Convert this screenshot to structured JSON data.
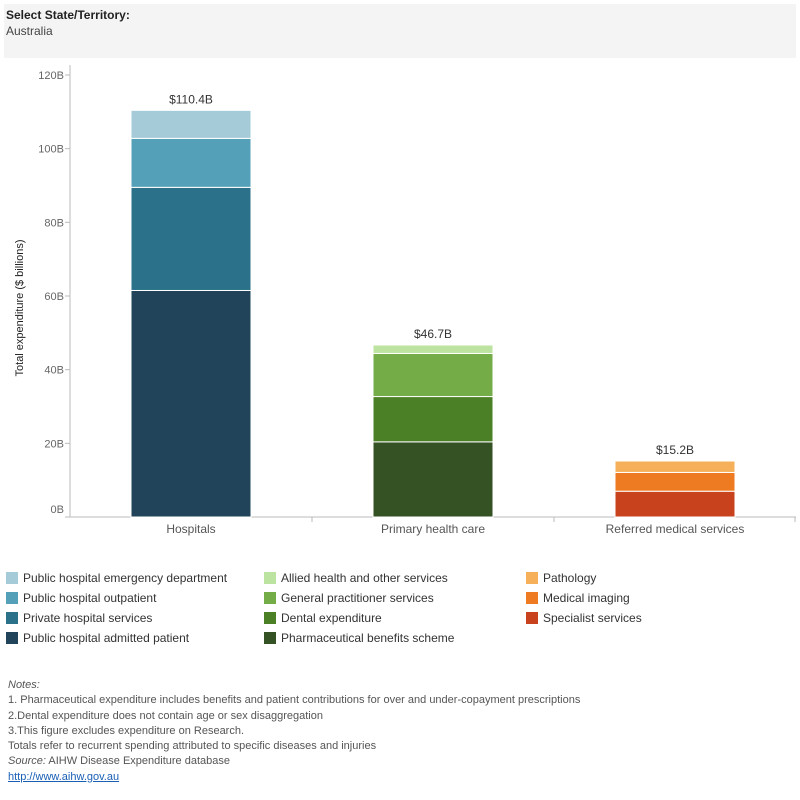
{
  "filter": {
    "label": "Select State/Territory:",
    "value": "Australia"
  },
  "chart_data": {
    "type": "bar",
    "stacked": true,
    "ylabel": "Total expenditure ($ billions)",
    "ylim": [
      0,
      120
    ],
    "yticks": [
      "0B",
      "20B",
      "40B",
      "60B",
      "80B",
      "100B",
      "120B"
    ],
    "gridlines": false,
    "categories": [
      "Hospitals",
      "Primary health care",
      "Referred medical services"
    ],
    "totals": [
      {
        "category": "Hospitals",
        "value": 110.4,
        "label": "$110.4B"
      },
      {
        "category": "Primary health care",
        "value": 46.7,
        "label": "$46.7B"
      },
      {
        "category": "Referred medical services",
        "value": 15.2,
        "label": "$15.2B"
      }
    ],
    "series": [
      {
        "name": "Public hospital admitted patient",
        "category": "Hospitals",
        "value": 61.5,
        "color": "#22445a"
      },
      {
        "name": "Private hospital services",
        "category": "Hospitals",
        "value": 28.0,
        "color": "#2a7189"
      },
      {
        "name": "Public hospital outpatient",
        "category": "Hospitals",
        "value": 13.3,
        "color": "#55a0b9"
      },
      {
        "name": "Public hospital emergency department",
        "category": "Hospitals",
        "value": 7.6,
        "color": "#a6cbd8"
      },
      {
        "name": "Pharmaceutical benefits scheme",
        "category": "Primary health care",
        "value": 20.4,
        "color": "#355224"
      },
      {
        "name": "Dental expenditure",
        "category": "Primary health care",
        "value": 12.3,
        "color": "#4b8027"
      },
      {
        "name": "General practitioner services",
        "category": "Primary health care",
        "value": 11.7,
        "color": "#74ad48"
      },
      {
        "name": "Allied health and other services",
        "category": "Primary health care",
        "value": 2.3,
        "color": "#bde3a1"
      },
      {
        "name": "Specialist services",
        "category": "Referred medical services",
        "value": 7.0,
        "color": "#c8431d"
      },
      {
        "name": "Medical imaging",
        "category": "Referred medical services",
        "value": 5.1,
        "color": "#ee7a22"
      },
      {
        "name": "Pathology",
        "category": "Referred medical services",
        "value": 3.1,
        "color": "#f5b059"
      }
    ],
    "legend": {
      "placement": "bottom",
      "columns": [
        [
          "Public hospital emergency department",
          "Public hospital outpatient",
          "Private hospital services",
          "Public hospital admitted patient"
        ],
        [
          "Allied health and other services",
          "General practitioner services",
          "Dental expenditure",
          "Pharmaceutical benefits scheme"
        ],
        [
          "Pathology",
          "Medical imaging",
          "Specialist services"
        ]
      ]
    }
  },
  "notes": {
    "heading": "Notes:",
    "lines": [
      "1. Pharmaceutical expenditure includes benefits and patient contributions for over and under-copayment prescriptions",
      "2.Dental expenditure does not contain age or sex disaggregation",
      "3.This figure excludes expenditure on Research.",
      "Totals refer to recurrent spending attributed to specific diseases and injuries"
    ],
    "source_label": "Source:",
    "source_text": " AIHW Disease Expenditure database",
    "link": "http://www.aihw.gov.au"
  }
}
